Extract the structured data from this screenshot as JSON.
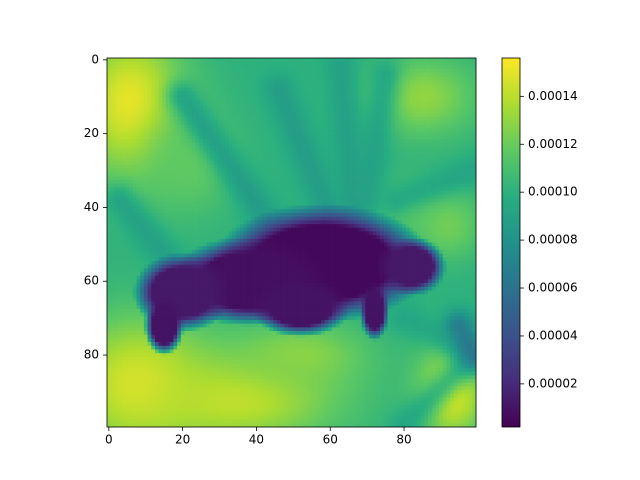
{
  "chart_data": {
    "type": "heatmap",
    "title": "",
    "xlabel": "",
    "ylabel": "",
    "shape": [
      100,
      100
    ],
    "xlim": [
      -0.5,
      99.5
    ],
    "ylim": [
      99.5,
      -0.5
    ],
    "xticks": [
      0,
      20,
      40,
      60,
      80
    ],
    "xtick_labels": [
      "0",
      "20",
      "40",
      "60",
      "80"
    ],
    "yticks": [
      0,
      20,
      40,
      60,
      80
    ],
    "ytick_labels": [
      "0",
      "20",
      "40",
      "60",
      "80"
    ],
    "colormap": "viridis",
    "value_range": [
      2e-06,
      0.000156
    ],
    "colorbar": {
      "ticks": [
        2e-05,
        4e-05,
        6e-05,
        8e-05,
        0.0001,
        0.00012,
        0.00014
      ],
      "tick_labels": [
        "0.00002",
        "0.00004",
        "0.00006",
        "0.00008",
        "0.00010",
        "0.00012",
        "0.00014"
      ]
    },
    "grid": false,
    "legend": "none",
    "background_value": 0.0001,
    "regions": [
      {
        "kind": "blob",
        "cx": 6,
        "cy": 12,
        "rx": 16,
        "ry": 22,
        "value": 0.000152
      },
      {
        "kind": "blob",
        "cx": 8,
        "cy": 88,
        "rx": 22,
        "ry": 20,
        "value": 0.000148
      },
      {
        "kind": "blob",
        "cx": 35,
        "cy": 92,
        "rx": 30,
        "ry": 14,
        "value": 0.000142
      },
      {
        "kind": "blob",
        "cx": 93,
        "cy": 90,
        "rx": 10,
        "ry": 14,
        "value": 0.00015
      },
      {
        "kind": "blob",
        "cx": 52,
        "cy": 80,
        "rx": 20,
        "ry": 10,
        "value": 0.000128
      },
      {
        "kind": "blob",
        "cx": 22,
        "cy": 28,
        "rx": 14,
        "ry": 16,
        "value": 0.000118
      },
      {
        "kind": "blob",
        "cx": 85,
        "cy": 10,
        "rx": 16,
        "ry": 12,
        "value": 0.00013
      },
      {
        "kind": "blob",
        "cx": 82,
        "cy": 40,
        "rx": 14,
        "ry": 10,
        "value": 0.000112
      },
      {
        "kind": "blob",
        "cx": 92,
        "cy": 45,
        "rx": 10,
        "ry": 10,
        "value": 0.000122
      },
      {
        "kind": "stripe",
        "x1": 20,
        "y1": 10,
        "x2": 42,
        "y2": 42,
        "w": 3,
        "value": 8e-05
      },
      {
        "kind": "stripe",
        "x1": 46,
        "y1": 8,
        "x2": 60,
        "y2": 42,
        "w": 3,
        "value": 8.2e-05
      },
      {
        "kind": "stripe",
        "x1": 63,
        "y1": 2,
        "x2": 66,
        "y2": 40,
        "w": 3,
        "value": 8.4e-05
      },
      {
        "kind": "stripe",
        "x1": 75,
        "y1": 4,
        "x2": 70,
        "y2": 38,
        "w": 3,
        "value": 8.6e-05
      },
      {
        "kind": "stripe",
        "x1": 3,
        "y1": 38,
        "x2": 16,
        "y2": 54,
        "w": 3,
        "value": 8.4e-05
      },
      {
        "kind": "stripe",
        "x1": 78,
        "y1": 38,
        "x2": 99,
        "y2": 30,
        "w": 3,
        "value": 8.8e-05
      },
      {
        "kind": "stripe",
        "x1": 80,
        "y1": 99,
        "x2": 99,
        "y2": 80,
        "w": 3,
        "value": 8.8e-05
      },
      {
        "kind": "stripe",
        "x1": 80,
        "y1": 70,
        "x2": 99,
        "y2": 80,
        "w": 3,
        "value": 9e-05
      },
      {
        "kind": "stripe",
        "x1": 95,
        "y1": 72,
        "x2": 99,
        "y2": 80,
        "w": 3,
        "value": 5e-05
      },
      {
        "kind": "dark",
        "cx": 58,
        "cy": 55,
        "rx": 22,
        "ry": 12,
        "value": 5e-06
      },
      {
        "kind": "dark",
        "cx": 38,
        "cy": 60,
        "rx": 16,
        "ry": 9,
        "value": 8e-06
      },
      {
        "kind": "dark",
        "cx": 20,
        "cy": 63,
        "rx": 10,
        "ry": 8,
        "value": 1.2e-05
      },
      {
        "kind": "dark",
        "cx": 15,
        "cy": 72,
        "rx": 4,
        "ry": 6,
        "value": 1e-05
      },
      {
        "kind": "dark",
        "cx": 82,
        "cy": 56,
        "rx": 7,
        "ry": 6,
        "value": 1.2e-05
      },
      {
        "kind": "dark",
        "cx": 72,
        "cy": 68,
        "rx": 3,
        "ry": 6,
        "value": 1e-05
      },
      {
        "kind": "dark",
        "cx": 52,
        "cy": 67,
        "rx": 10,
        "ry": 6,
        "value": 1e-05
      }
    ]
  }
}
